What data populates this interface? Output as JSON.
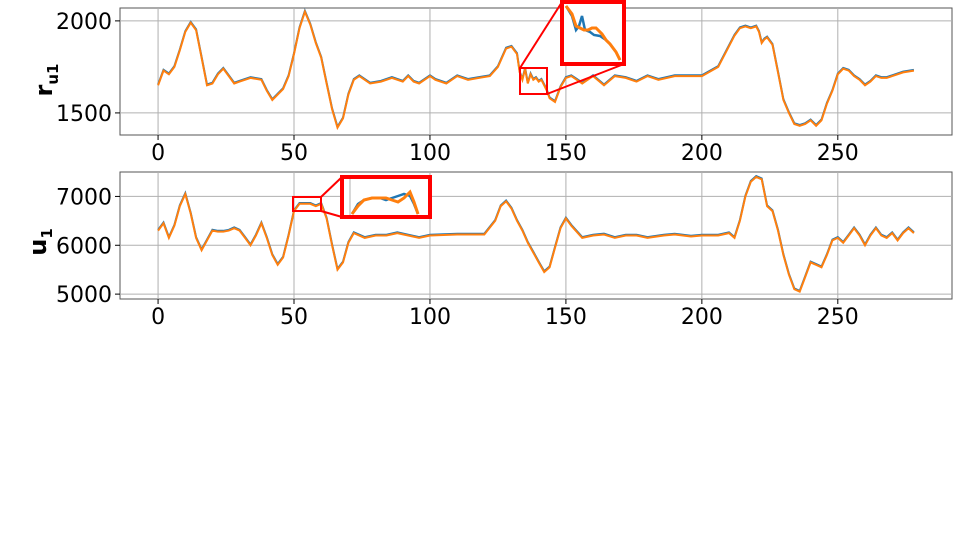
{
  "chart_data": [
    {
      "type": "line",
      "ylabel": "r",
      "ylabel_subscript": "u1",
      "xlim": [
        -14,
        292
      ],
      "ylim": [
        1380,
        2070
      ],
      "xticks": [
        0,
        50,
        100,
        150,
        200,
        250
      ],
      "xtick_labels": [
        "0",
        "50",
        "100",
        "150",
        "200",
        "250"
      ],
      "yticks": [
        1500,
        2000
      ],
      "ytick_labels": [
        "1500",
        "2000"
      ],
      "grid": true,
      "colors": {
        "series_a": "#1f77b4",
        "series_b": "#ff7f0e",
        "inset": "#ff0000"
      },
      "series": [
        {
          "x": [
            0,
            2,
            4,
            6,
            8,
            10,
            12,
            14,
            16,
            18,
            20,
            22,
            24,
            26,
            28,
            30,
            34,
            38,
            40,
            42,
            44,
            46,
            48,
            50,
            52,
            54,
            56,
            58,
            60,
            62,
            64,
            66,
            68,
            70,
            72,
            74,
            78,
            82,
            86,
            90,
            92,
            94,
            96,
            100,
            102,
            106,
            110,
            114,
            118,
            122,
            125,
            128,
            130,
            132,
            133,
            134,
            135,
            136,
            137,
            138,
            139,
            140,
            141,
            142,
            143,
            144,
            146,
            148,
            150,
            152,
            154,
            156,
            160,
            164,
            168,
            172,
            176,
            180,
            184,
            190,
            196,
            200,
            206,
            212,
            214,
            216,
            218,
            220,
            221,
            222,
            223,
            224,
            226,
            228,
            230,
            232,
            234,
            236,
            238,
            240,
            242,
            244,
            246,
            248,
            250,
            252,
            254,
            256,
            258,
            260,
            262,
            264,
            266,
            268,
            270,
            274,
            278
          ],
          "y": [
            1650,
            1730,
            1710,
            1750,
            1840,
            1940,
            1990,
            1950,
            1800,
            1650,
            1660,
            1710,
            1740,
            1700,
            1660,
            1670,
            1690,
            1680,
            1620,
            1570,
            1600,
            1630,
            1700,
            1820,
            1960,
            2050,
            1980,
            1880,
            1800,
            1660,
            1520,
            1420,
            1470,
            1600,
            1680,
            1700,
            1660,
            1670,
            1690,
            1670,
            1700,
            1670,
            1660,
            1700,
            1680,
            1660,
            1700,
            1680,
            1690,
            1700,
            1750,
            1850,
            1860,
            1820,
            1720,
            1680,
            1740,
            1660,
            1710,
            1680,
            1690,
            1670,
            1680,
            1650,
            1620,
            1580,
            1560,
            1640,
            1690,
            1700,
            1680,
            1660,
            1700,
            1650,
            1700,
            1690,
            1670,
            1700,
            1680,
            1700,
            1700,
            1700,
            1750,
            1920,
            1960,
            1970,
            1960,
            1970,
            1940,
            1880,
            1900,
            1910,
            1870,
            1720,
            1570,
            1500,
            1440,
            1430,
            1440,
            1460,
            1430,
            1460,
            1550,
            1620,
            1710,
            1740,
            1730,
            1700,
            1680,
            1650,
            1670,
            1700,
            1690,
            1690,
            1700,
            1720,
            1730
          ]
        }
      ]
    },
    {
      "type": "line",
      "ylabel": "u",
      "ylabel_subscript": "1",
      "xlim": [
        -14,
        292
      ],
      "ylim": [
        4900,
        7500
      ],
      "xticks": [
        0,
        50,
        100,
        150,
        200,
        250
      ],
      "xtick_labels": [
        "0",
        "50",
        "100",
        "150",
        "200",
        "250"
      ],
      "yticks": [
        5000,
        6000,
        7000
      ],
      "ytick_labels": [
        "5000",
        "6000",
        "7000"
      ],
      "grid": true,
      "colors": {
        "series_a": "#1f77b4",
        "series_b": "#ff7f0e",
        "inset": "#ff0000"
      },
      "series": [
        {
          "x": [
            0,
            2,
            4,
            6,
            8,
            10,
            12,
            14,
            16,
            18,
            20,
            22,
            24,
            26,
            28,
            30,
            32,
            34,
            36,
            38,
            40,
            42,
            44,
            46,
            48,
            50,
            52,
            54,
            56,
            58,
            60,
            62,
            64,
            66,
            68,
            70,
            72,
            76,
            80,
            84,
            88,
            92,
            96,
            100,
            110,
            120,
            124,
            126,
            128,
            130,
            132,
            134,
            136,
            138,
            140,
            142,
            144,
            146,
            148,
            150,
            152,
            156,
            160,
            164,
            168,
            172,
            176,
            180,
            186,
            190,
            196,
            200,
            206,
            210,
            212,
            214,
            216,
            218,
            220,
            222,
            224,
            226,
            228,
            230,
            232,
            234,
            236,
            238,
            240,
            242,
            244,
            246,
            248,
            250,
            252,
            254,
            256,
            258,
            260,
            262,
            264,
            266,
            268,
            270,
            272,
            274,
            276,
            278
          ],
          "y": [
            6300,
            6450,
            6150,
            6400,
            6800,
            7050,
            6650,
            6150,
            5900,
            6100,
            6300,
            6280,
            6280,
            6300,
            6350,
            6300,
            6150,
            6000,
            6200,
            6450,
            6150,
            5800,
            5600,
            5750,
            6200,
            6700,
            6850,
            6850,
            6850,
            6800,
            6850,
            6550,
            6000,
            5500,
            5650,
            6050,
            6250,
            6150,
            6200,
            6200,
            6250,
            6200,
            6150,
            6200,
            6220,
            6220,
            6500,
            6800,
            6900,
            6750,
            6500,
            6300,
            6050,
            5850,
            5650,
            5450,
            5550,
            5950,
            6350,
            6550,
            6400,
            6150,
            6200,
            6220,
            6150,
            6200,
            6200,
            6150,
            6200,
            6220,
            6180,
            6200,
            6200,
            6250,
            6150,
            6500,
            7000,
            7300,
            7400,
            7350,
            6800,
            6700,
            6300,
            5800,
            5400,
            5100,
            5050,
            5350,
            5650,
            5600,
            5550,
            5800,
            6100,
            6150,
            6050,
            6200,
            6350,
            6200,
            6000,
            6200,
            6350,
            6200,
            6150,
            6250,
            6100,
            6250,
            6350,
            6250
          ]
        }
      ]
    }
  ]
}
